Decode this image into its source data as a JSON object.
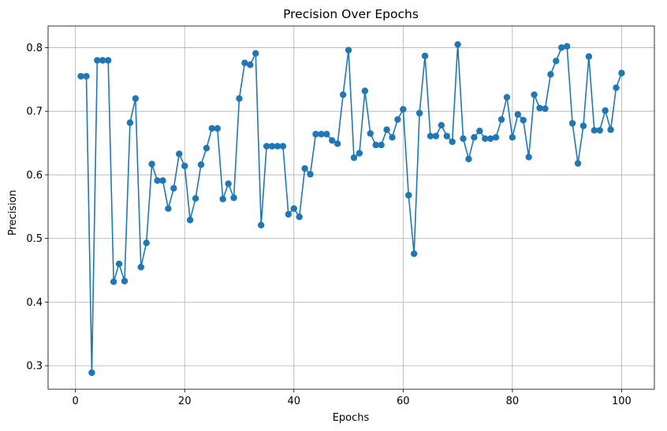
{
  "chart_data": {
    "type": "line",
    "title": "Precision Over Epochs",
    "xlabel": "Epochs",
    "ylabel": "Precision",
    "xlim": [
      -5,
      106
    ],
    "ylim": [
      0.263,
      0.834
    ],
    "xticks": [
      0,
      20,
      40,
      60,
      80,
      100
    ],
    "yticks": [
      0.3,
      0.4,
      0.5,
      0.6,
      0.7,
      0.8
    ],
    "xtick_labels": [
      "0",
      "20",
      "40",
      "60",
      "80",
      "100"
    ],
    "ytick_labels": [
      "0.3",
      "0.4",
      "0.5",
      "0.6",
      "0.7",
      "0.8"
    ],
    "grid": true,
    "marker": "circle",
    "color": "#1f77b4",
    "series": [
      {
        "x": [
          1,
          2,
          3,
          4,
          5,
          6,
          7,
          8,
          9,
          10,
          11,
          12,
          13,
          14,
          15,
          16,
          17,
          18,
          19,
          20,
          21,
          22,
          23,
          24,
          25,
          26,
          27,
          28,
          29,
          30,
          31,
          32,
          33,
          34,
          35,
          36,
          37,
          38,
          39,
          40,
          41,
          42,
          43,
          44,
          45,
          46,
          47,
          48,
          49,
          50,
          51,
          52,
          53,
          54,
          55,
          56,
          57,
          58,
          59,
          60,
          61,
          62,
          63,
          64,
          65,
          66,
          67,
          68,
          69,
          70,
          71,
          72,
          73,
          74,
          75,
          76,
          77,
          78,
          79,
          80,
          81,
          82,
          83,
          84,
          85,
          86,
          87,
          88,
          89,
          90,
          91,
          92,
          93,
          94,
          95,
          96,
          97,
          98,
          99,
          100
        ],
        "values": [
          0.755,
          0.755,
          0.289,
          0.78,
          0.78,
          0.78,
          0.432,
          0.46,
          0.433,
          0.682,
          0.72,
          0.455,
          0.493,
          0.617,
          0.591,
          0.591,
          0.547,
          0.579,
          0.633,
          0.614,
          0.529,
          0.563,
          0.616,
          0.642,
          0.673,
          0.673,
          0.562,
          0.586,
          0.564,
          0.72,
          0.776,
          0.773,
          0.791,
          0.521,
          0.645,
          0.645,
          0.645,
          0.645,
          0.538,
          0.547,
          0.534,
          0.61,
          0.601,
          0.664,
          0.664,
          0.664,
          0.654,
          0.649,
          0.726,
          0.796,
          0.627,
          0.634,
          0.732,
          0.665,
          0.647,
          0.647,
          0.671,
          0.659,
          0.687,
          0.703,
          0.568,
          0.476,
          0.697,
          0.787,
          0.661,
          0.661,
          0.678,
          0.661,
          0.652,
          0.805,
          0.657,
          0.625,
          0.659,
          0.669,
          0.657,
          0.657,
          0.659,
          0.687,
          0.722,
          0.659,
          0.695,
          0.686,
          0.628,
          0.726,
          0.705,
          0.704,
          0.758,
          0.779,
          0.8,
          0.802,
          0.681,
          0.618,
          0.677,
          0.786,
          0.67,
          0.67,
          0.701,
          0.671,
          0.737,
          0.76
        ]
      }
    ]
  }
}
